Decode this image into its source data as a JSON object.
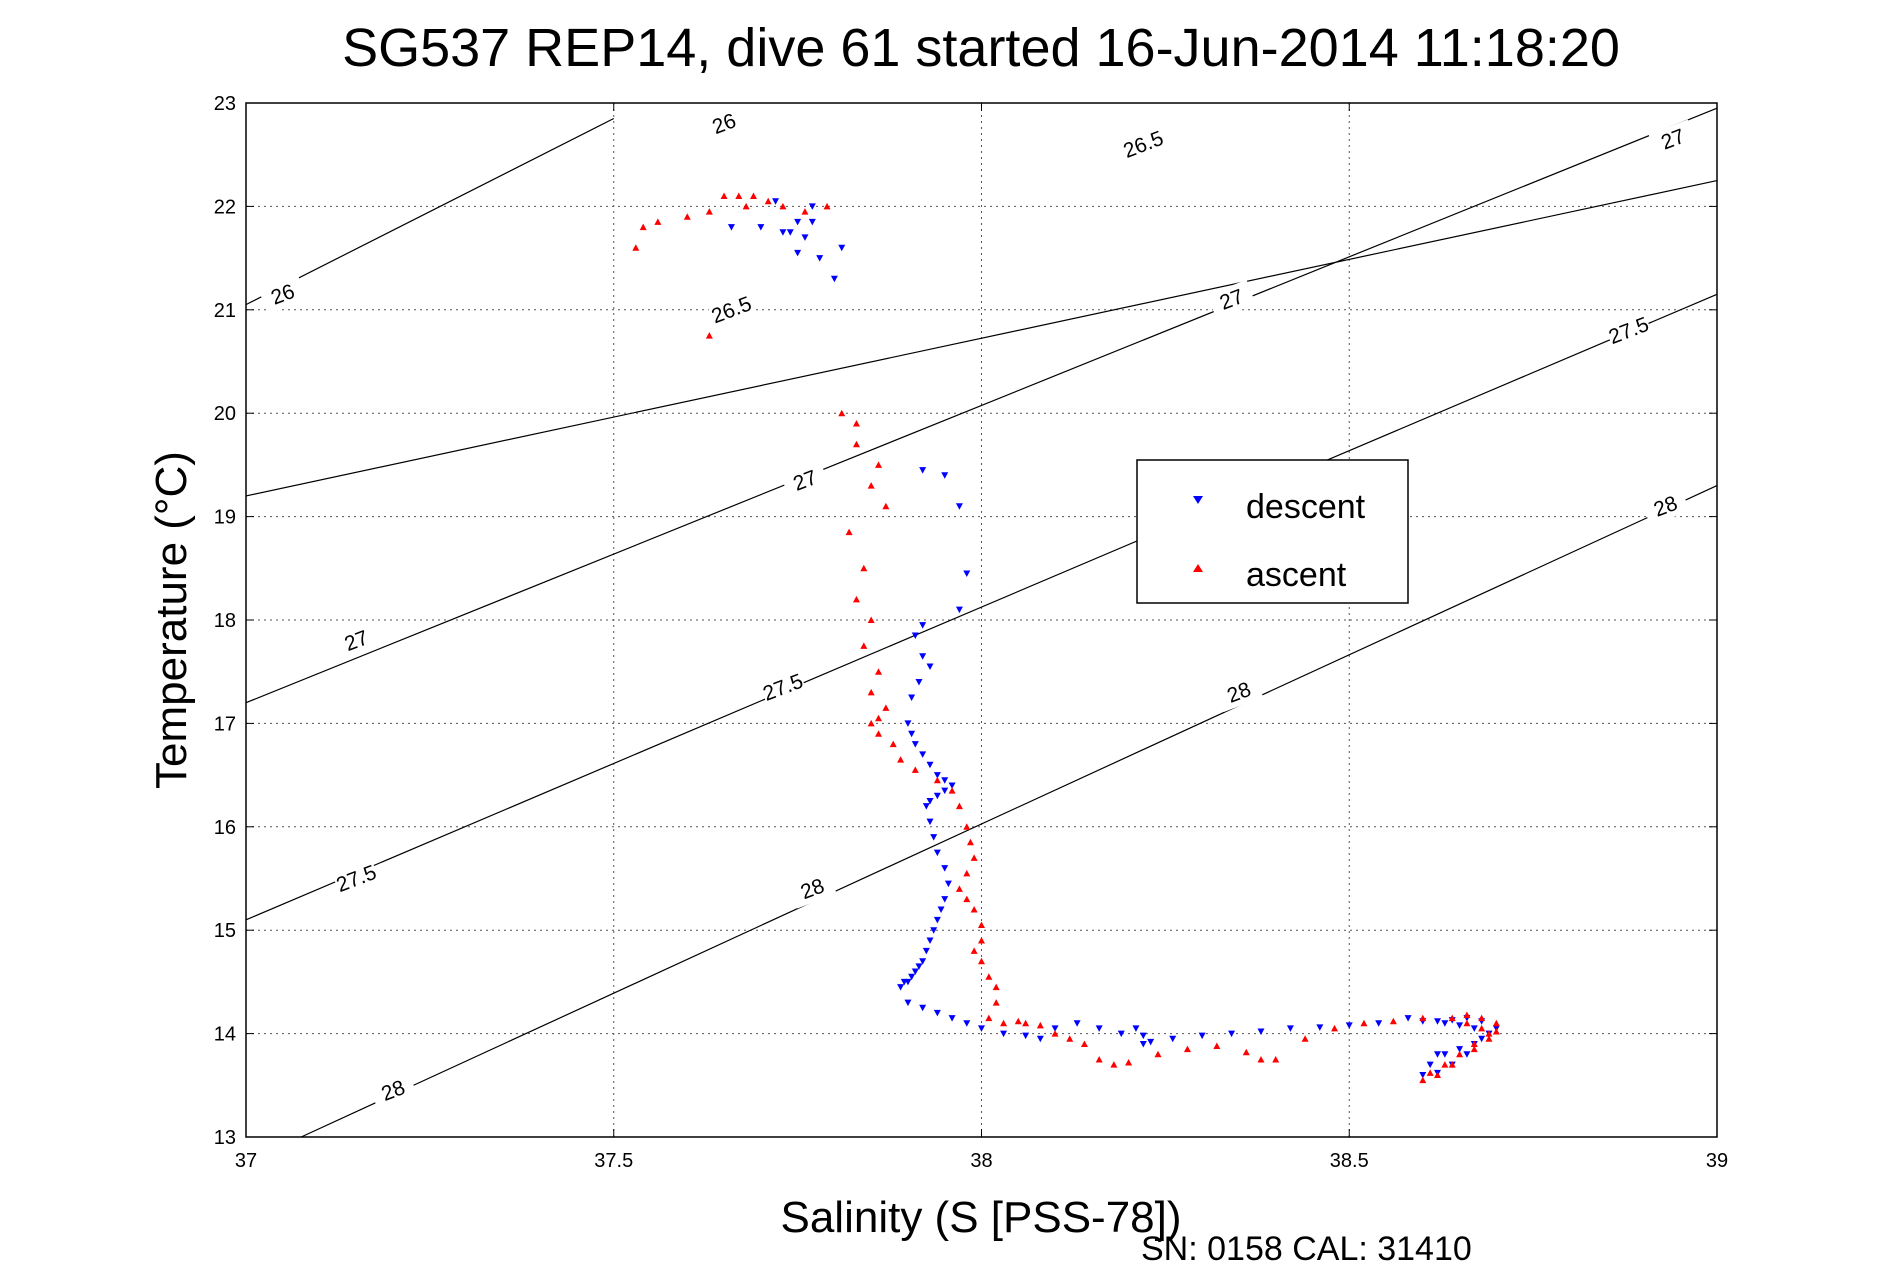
{
  "chart_data": {
    "type": "scatter",
    "title": "SG537 REP14, dive 61 started 16-Jun-2014 11:18:20",
    "xlabel": "Salinity (S [PSS-78])",
    "ylabel": "Temperature (°C)",
    "footer": "SN: 0158  CAL: 31410",
    "xlim": [
      37,
      39
    ],
    "ylim": [
      13,
      23
    ],
    "xticks": [
      "37",
      "37.5",
      "38",
      "38.5",
      "39"
    ],
    "yticks": [
      "13",
      "14",
      "15",
      "16",
      "17",
      "18",
      "19",
      "20",
      "21",
      "22",
      "23"
    ],
    "grid": true,
    "legend_position": "center-right",
    "contours": {
      "levels": [
        "26",
        "26.5",
        "27",
        "27.5",
        "28"
      ],
      "lines": [
        {
          "level": "26",
          "x": [
            37,
            37.5
          ],
          "y": [
            21.05,
            22.85
          ]
        },
        {
          "level": "26.5",
          "x": [
            37,
            39
          ],
          "y": [
            19.2,
            22.25
          ]
        },
        {
          "level": "27",
          "x": [
            37,
            39
          ],
          "y": [
            17.2,
            22.95
          ]
        },
        {
          "level": "27.5",
          "x": [
            37,
            39
          ],
          "y": [
            15.1,
            21.15
          ]
        },
        {
          "level": "28",
          "x": [
            37.075,
            39
          ],
          "y": [
            13.0,
            19.3
          ]
        }
      ],
      "labels": [
        {
          "text": "26",
          "x": 37.65,
          "y": 22.8
        },
        {
          "text": "26",
          "x": 37.05,
          "y": 21.15
        },
        {
          "text": "26.5",
          "x": 38.22,
          "y": 22.6
        },
        {
          "text": "26.5",
          "x": 37.66,
          "y": 21.0
        },
        {
          "text": "27",
          "x": 38.94,
          "y": 22.65
        },
        {
          "text": "27",
          "x": 38.34,
          "y": 21.1
        },
        {
          "text": "27",
          "x": 37.76,
          "y": 19.35
        },
        {
          "text": "27",
          "x": 37.15,
          "y": 17.8
        },
        {
          "text": "27.5",
          "x": 38.88,
          "y": 20.8
        },
        {
          "text": "27.5",
          "x": 37.73,
          "y": 17.35
        },
        {
          "text": "27.5",
          "x": 37.15,
          "y": 15.5
        },
        {
          "text": "28",
          "x": 38.93,
          "y": 19.1
        },
        {
          "text": "28",
          "x": 38.35,
          "y": 17.3
        },
        {
          "text": "28",
          "x": 37.77,
          "y": 15.4
        },
        {
          "text": "28",
          "x": 37.2,
          "y": 13.45
        }
      ]
    },
    "series": [
      {
        "name": "descent",
        "color": "#0000ff",
        "marker": "triangle-down",
        "x": [
          37.72,
          37.75,
          37.77,
          37.66,
          37.7,
          37.73,
          37.75,
          37.77,
          37.8,
          37.74,
          37.76,
          37.78,
          37.81,
          37.92,
          37.95,
          37.97,
          37.98,
          37.97,
          37.92,
          37.91,
          37.92,
          37.93,
          37.915,
          37.905,
          37.9,
          37.905,
          37.91,
          37.92,
          37.93,
          37.94,
          37.95,
          37.96,
          37.95,
          37.94,
          37.93,
          37.925,
          37.93,
          37.935,
          37.94,
          37.95,
          37.955,
          37.95,
          37.945,
          37.94,
          37.935,
          37.93,
          37.925,
          37.92,
          37.915,
          37.91,
          37.905,
          37.9,
          37.895,
          37.89,
          37.9,
          37.92,
          37.94,
          37.96,
          37.98,
          38.0,
          38.03,
          38.06,
          38.08,
          38.1,
          38.13,
          38.16,
          38.19,
          38.22,
          38.22,
          38.21,
          38.23,
          38.26,
          38.3,
          38.34,
          38.38,
          38.42,
          38.46,
          38.5,
          38.54,
          38.58,
          38.6,
          38.62,
          38.64,
          38.66,
          38.68,
          38.7,
          38.69,
          38.67,
          38.65,
          38.63,
          38.61,
          38.6,
          38.62,
          38.64,
          38.66,
          38.68,
          38.67,
          38.65,
          38.63,
          38.62
        ],
        "y": [
          22.05,
          21.85,
          22.0,
          21.8,
          21.8,
          21.75,
          21.55,
          21.85,
          21.3,
          21.75,
          21.7,
          21.5,
          21.6,
          19.45,
          19.4,
          19.1,
          18.45,
          18.1,
          17.95,
          17.85,
          17.65,
          17.55,
          17.4,
          17.25,
          17.0,
          16.9,
          16.8,
          16.7,
          16.6,
          16.5,
          16.45,
          16.4,
          16.35,
          16.3,
          16.25,
          16.2,
          16.05,
          15.9,
          15.75,
          15.6,
          15.45,
          15.3,
          15.2,
          15.1,
          15.0,
          14.9,
          14.8,
          14.7,
          14.65,
          14.6,
          14.55,
          14.5,
          14.5,
          14.45,
          14.3,
          14.25,
          14.2,
          14.15,
          14.1,
          14.05,
          14.0,
          13.98,
          13.95,
          14.05,
          14.1,
          14.05,
          14.0,
          13.98,
          13.9,
          14.05,
          13.92,
          13.95,
          13.98,
          14.0,
          14.02,
          14.05,
          14.06,
          14.08,
          14.1,
          14.15,
          14.12,
          14.12,
          14.13,
          14.15,
          14.12,
          14.05,
          14.0,
          13.9,
          13.85,
          13.8,
          13.7,
          13.6,
          13.62,
          13.7,
          13.8,
          13.95,
          14.05,
          14.08,
          14.1,
          13.8
        ]
      },
      {
        "name": "ascent",
        "color": "#ff0000",
        "marker": "triangle-up",
        "x": [
          37.53,
          37.54,
          37.56,
          37.6,
          37.63,
          37.65,
          37.67,
          37.69,
          37.71,
          37.68,
          37.73,
          37.76,
          37.79,
          37.81,
          37.83,
          37.63,
          37.83,
          37.86,
          37.85,
          37.87,
          37.82,
          37.84,
          37.83,
          37.85,
          37.84,
          37.86,
          37.85,
          37.87,
          37.86,
          37.85,
          37.86,
          37.88,
          37.89,
          37.91,
          37.94,
          37.96,
          37.97,
          37.98,
          37.985,
          37.99,
          37.98,
          37.97,
          37.98,
          37.99,
          38.0,
          38.0,
          37.99,
          38.0,
          38.01,
          38.02,
          38.02,
          38.01,
          38.03,
          38.05,
          38.06,
          38.08,
          38.1,
          38.12,
          38.14,
          38.16,
          38.18,
          38.2,
          38.24,
          38.28,
          38.32,
          38.36,
          38.38,
          38.4,
          38.44,
          38.48,
          38.52,
          38.56,
          38.6,
          38.64,
          38.66,
          38.68,
          38.7,
          38.69,
          38.67,
          38.65,
          38.63,
          38.61,
          38.6,
          38.62,
          38.64,
          38.67,
          38.69,
          38.7,
          38.68,
          38.66
        ],
        "y": [
          21.6,
          21.8,
          21.85,
          21.9,
          21.95,
          22.1,
          22.1,
          22.1,
          22.05,
          22.0,
          22.0,
          21.95,
          22.0,
          20.0,
          19.9,
          20.75,
          19.7,
          19.5,
          19.3,
          19.1,
          18.85,
          18.5,
          18.2,
          18.0,
          17.75,
          17.5,
          17.3,
          17.15,
          17.05,
          17.0,
          16.9,
          16.8,
          16.65,
          16.55,
          16.45,
          16.35,
          16.2,
          16.0,
          15.85,
          15.7,
          15.55,
          15.4,
          15.3,
          15.2,
          15.05,
          14.9,
          14.8,
          14.7,
          14.55,
          14.45,
          14.3,
          14.15,
          14.1,
          14.12,
          14.1,
          14.08,
          14.0,
          13.95,
          13.9,
          13.75,
          13.7,
          13.72,
          13.8,
          13.85,
          13.88,
          13.82,
          13.75,
          13.75,
          13.95,
          14.05,
          14.1,
          14.12,
          14.15,
          14.15,
          14.18,
          14.15,
          14.1,
          14.0,
          13.9,
          13.8,
          13.7,
          13.62,
          13.55,
          13.6,
          13.7,
          13.85,
          13.95,
          14.02,
          14.05,
          14.1
        ]
      }
    ]
  }
}
